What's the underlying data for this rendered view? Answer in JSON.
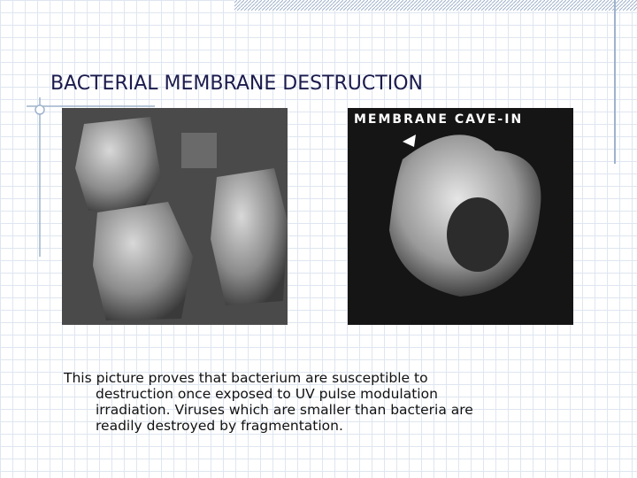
{
  "slide": {
    "title": "BACTERIAL MEMBRANE DESTRUCTION",
    "right_image_caption": "MEMBRANE CAVE-IN",
    "body": {
      "lines": [
        "This picture proves that bacterium are susceptible to",
        "destruction once exposed to UV pulse modulation",
        "irradiation. Viruses which are smaller than bacteria are",
        "readily destroyed by fragmentation."
      ]
    }
  }
}
